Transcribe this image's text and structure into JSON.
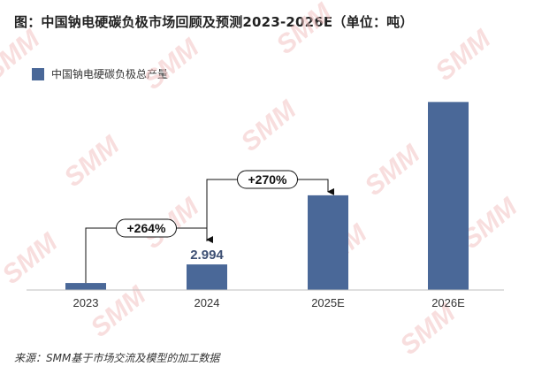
{
  "title": "图：中国钠电硬碳负极市场回顾及预测2023-2026E（单位：吨）",
  "source": "来源：SMM基于市场交流及模型的加工数据",
  "watermark": "SMM",
  "colors": {
    "bar": "#4a6898",
    "axis": "#bfbfbf",
    "text": "#333333",
    "watermark": "#f2c2c2"
  },
  "chart_data": {
    "type": "bar",
    "categories": [
      "2023",
      "2024",
      "2025E",
      "2026E"
    ],
    "series": [
      {
        "name": "中国钠电硬碳负极总产量",
        "values": [
          0.82,
          2.994,
          11.08,
          22.0
        ]
      }
    ],
    "data_labels": [
      {
        "index": 1,
        "text": "2.994"
      }
    ],
    "annotations": [
      {
        "text": "+264%",
        "from": 0,
        "to": 1
      },
      {
        "text": "+270%",
        "from": 1,
        "to": 2
      }
    ],
    "ylim": [
      0,
      24
    ],
    "grid": false,
    "legend_position": "top-left",
    "xlabel": "",
    "ylabel": ""
  }
}
